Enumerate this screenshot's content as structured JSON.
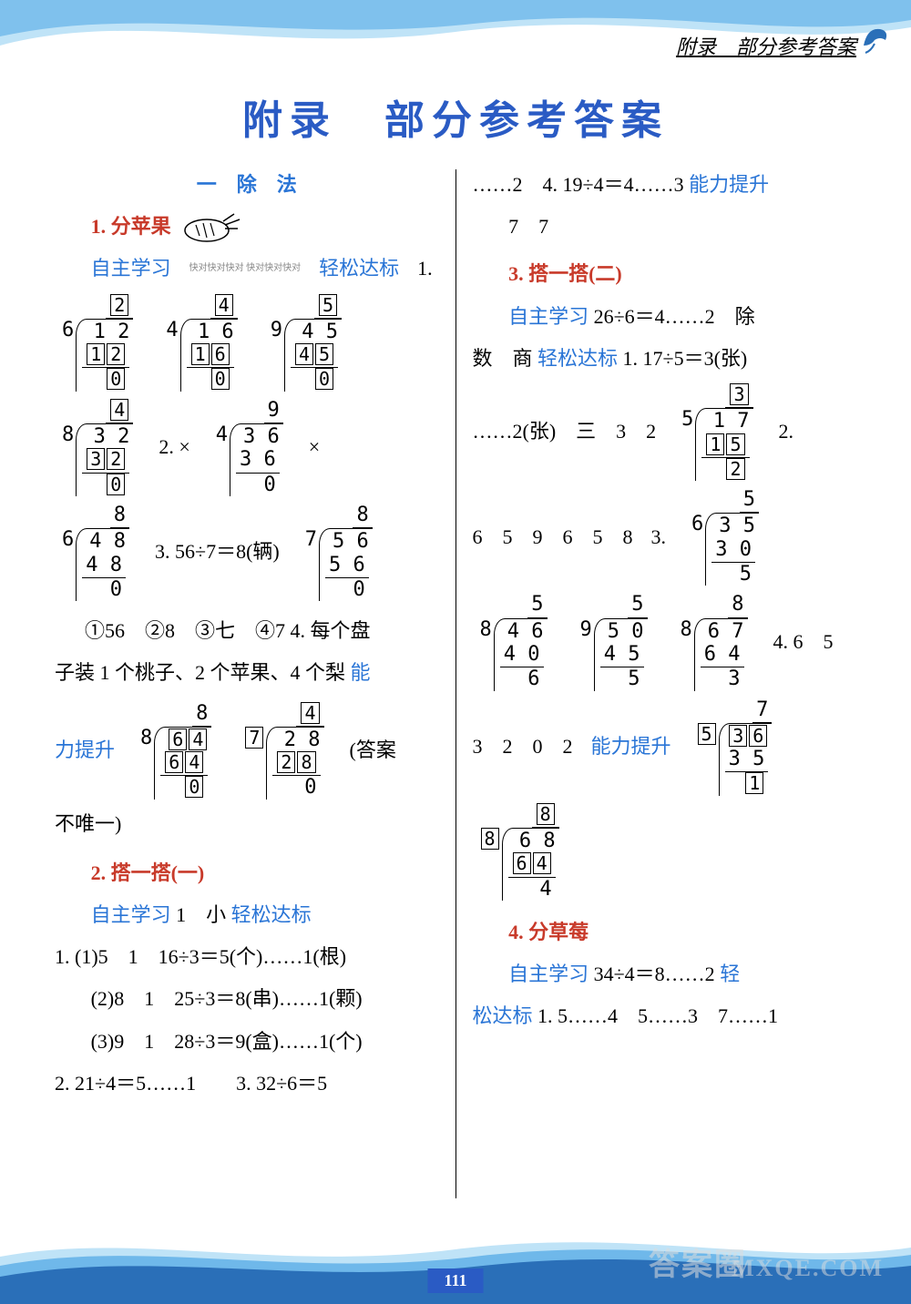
{
  "page": {
    "header_text": "附录　部分参考答案",
    "main_title": "附录　部分参考答案",
    "page_number": "111",
    "watermark1": "答案圈",
    "watermark2": "MXQE.COM"
  },
  "colors": {
    "accent_blue": "#2a5bc4",
    "link_blue": "#2a75d6",
    "red": "#c83a2a",
    "text": "#000000",
    "bg": "#ffffff",
    "wave_light": "#bfe3f7",
    "wave_mid": "#6fb8ea",
    "wave_dark": "#2a6fb8"
  },
  "left": {
    "unit_title": "一　除　法",
    "s1_title": "1. 分苹果",
    "l_zizhu": "自主学习",
    "qr_text": "快对快对快对\n快对快对快对",
    "l_qingsong": "轻松达标",
    "q1": "1.",
    "div1": {
      "divisor": "6",
      "dividend": "1 2",
      "quotient": "2",
      "sub": "1 2",
      "rem": "0",
      "box_q": true,
      "box_sub": true,
      "box_rem": true
    },
    "div2": {
      "divisor": "4",
      "dividend": "1 6",
      "quotient": "4",
      "sub": "1 6",
      "rem": "0",
      "box_q": true,
      "box_sub": true,
      "box_rem": true
    },
    "div3": {
      "divisor": "9",
      "dividend": "4 5",
      "quotient": "5",
      "sub": "4 5",
      "rem": "0",
      "box_q": true,
      "box_sub": true,
      "box_rem": true
    },
    "div4": {
      "divisor": "8",
      "dividend": "3 2",
      "quotient": "4",
      "sub": "3 2",
      "rem": "0",
      "box_q": true,
      "box_sub": true,
      "box_rem": true
    },
    "q2": "2. ×",
    "div5": {
      "divisor": "4",
      "dividend": "3 6",
      "quotient": "9",
      "sub": "3 6",
      "rem": "0"
    },
    "x2": "×",
    "div6": {
      "divisor": "6",
      "dividend": "4 8",
      "quotient": "8",
      "sub": "4 8",
      "rem": "0"
    },
    "q3": "3. 56÷7＝8(辆)",
    "div7": {
      "divisor": "7",
      "dividend": "5 6",
      "quotient": "8",
      "sub": "5 6",
      "rem": "0"
    },
    "circled": "①56　②8　③七　④7",
    "q4": "4. 每个盘",
    "q4b": "子装 1 个桃子、2 个苹果、4 个梨",
    "neng": "能",
    "li_ts": "力提升",
    "div8": {
      "divisor": "8",
      "dividend": "6 4",
      "quotient": "8",
      "sub": "6 4",
      "rem": "0",
      "box_div": true,
      "box_sub": true,
      "box_rem": true
    },
    "div9": {
      "divisor": "7",
      "dividend": "2 8",
      "quotient": "4",
      "sub": "2 8",
      "rem": "0",
      "box_q": true,
      "box_divs": true,
      "box_sub": true
    },
    "ans_note": "(答案",
    "not_unique": "不唯一)",
    "s2_title": "2. 搭一搭(一)",
    "s2_zizhu": "自主学习",
    "s2_a": "1　小",
    "s2_qs": "轻松达标",
    "s2_1": "1. (1)5　1　16÷3＝5(个)……1(根)",
    "s2_2": "(2)8　1　25÷3＝8(串)……1(颗)",
    "s2_3": "(3)9　1　28÷3＝9(盒)……1(个)",
    "s2_4": "2. 21÷4＝5……1　　3. 32÷6＝5"
  },
  "right": {
    "line1a": "……2　4. 19÷4＝4……3",
    "nlts": "能力提升",
    "line2": "7　7",
    "s3_title": "3. 搭一搭(二)",
    "s3_zizhu": "自主学习",
    "s3_a": "26÷6＝4……2　除",
    "s3_b": "数　商",
    "s3_qs": "轻松达标",
    "s3_q1": "1. 17÷5＝3(张)",
    "divR1": {
      "divisor": "5",
      "dividend": "1 7",
      "quotient": "3",
      "sub": "1 5",
      "rem": "2",
      "box_q": true,
      "box_sub": true,
      "box_rem": true
    },
    "s3_c": "……2(张)　三　3　2",
    "q2tail": "2.",
    "row_nums": "6　5　9　6　5　8",
    "q3": "3.",
    "divR2": {
      "divisor": "6",
      "dividend": "3 5",
      "quotient": "5",
      "sub": "3 0",
      "rem": "5"
    },
    "divR3": {
      "divisor": "8",
      "dividend": "4 6",
      "quotient": "5",
      "sub": "4 0",
      "rem": "6"
    },
    "divR4": {
      "divisor": "9",
      "dividend": "5 0",
      "quotient": "5",
      "sub": "4 5",
      "rem": "5"
    },
    "divR5": {
      "divisor": "8",
      "dividend": "6 7",
      "quotient": "8",
      "sub": "6 4",
      "rem": "3"
    },
    "q4": "4. 6　5",
    "row2": "3　2　0　2",
    "nlts2": "能力提升",
    "divR6": {
      "divisor": "5",
      "dividend": "3 6",
      "quotient": "7",
      "sub": "3 5",
      "rem": "1",
      "box_divs": true,
      "box_div": true,
      "box_rem": true
    },
    "divR7": {
      "divisor": "8",
      "dividend": "6 8",
      "quotient": "8",
      "sub": "6 4",
      "rem": "4",
      "box_q": true,
      "box_divs": true,
      "box_sub": true
    },
    "s4_title": "4. 分草莓",
    "s4_zizhu": "自主学习",
    "s4_a": "34÷4＝8……2",
    "qing": "轻",
    "s4_qs": "松达标",
    "s4_last": "1. 5……4　5……3　7……1"
  }
}
